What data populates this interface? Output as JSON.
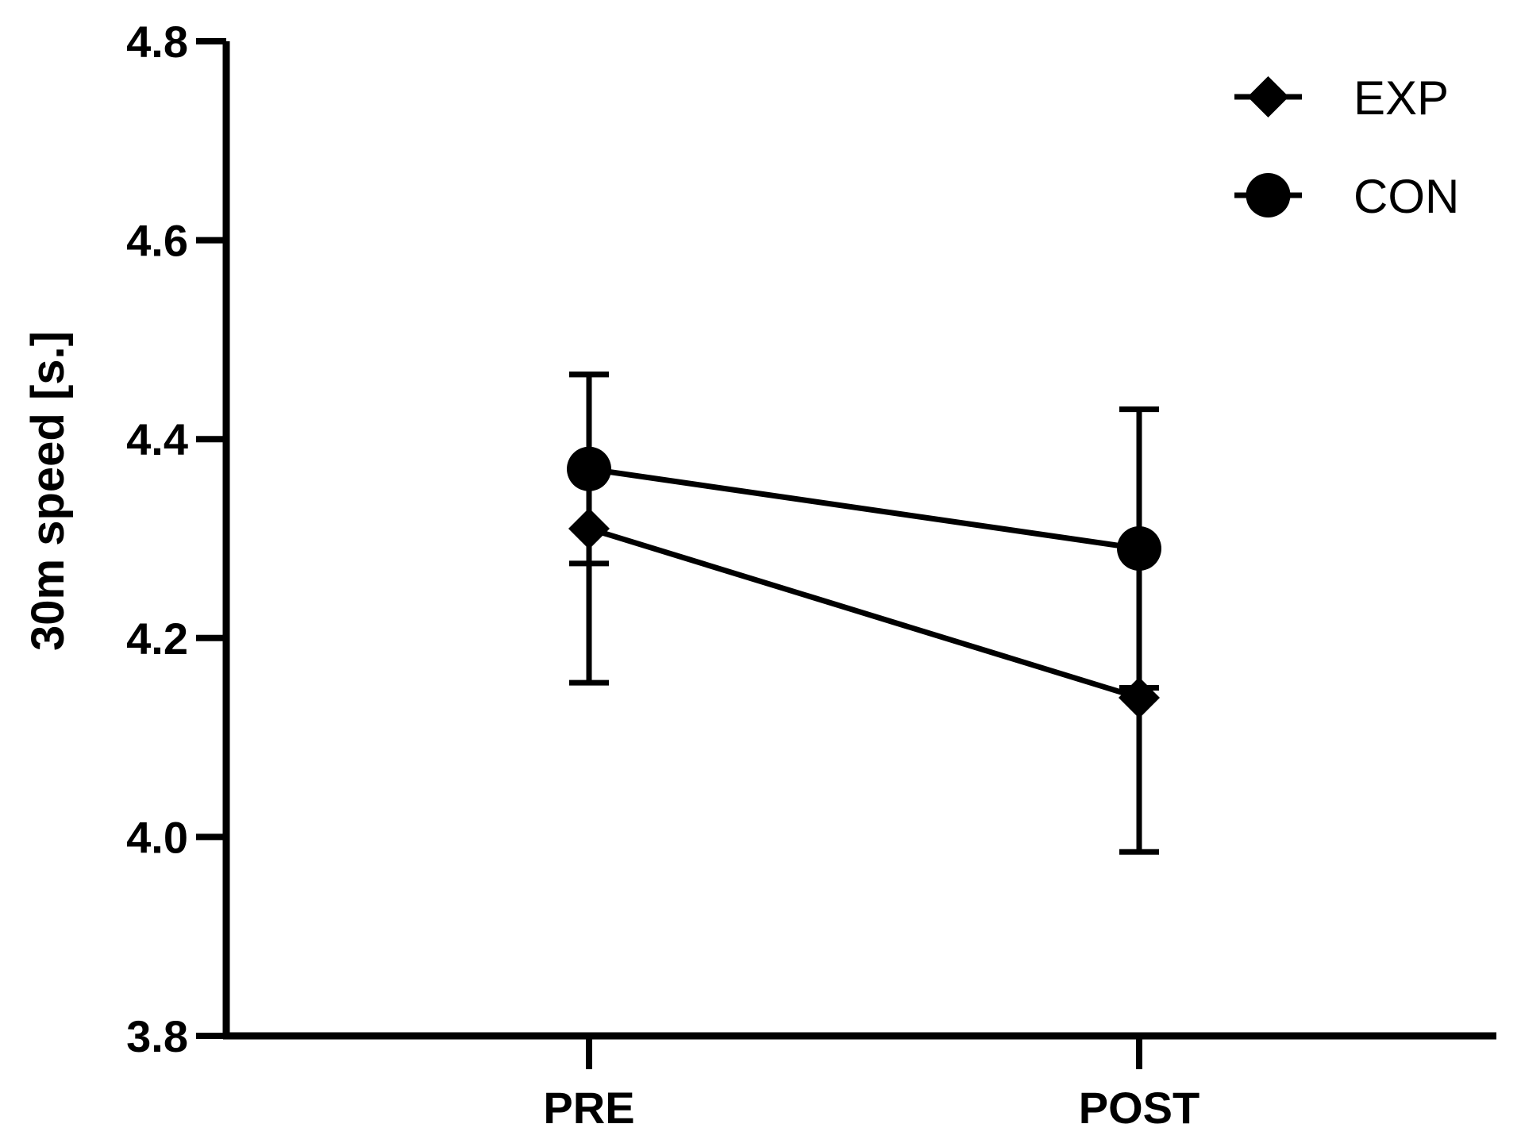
{
  "chart_data": {
    "type": "line",
    "categories": [
      "PRE",
      "POST"
    ],
    "ylabel": "30m speed [s.]",
    "xlabel": "",
    "ylim": [
      3.8,
      4.8
    ],
    "yticks": [
      "3.8",
      "4.0",
      "4.2",
      "4.4",
      "4.6",
      "4.8"
    ],
    "grid": false,
    "legend_position": "top-right",
    "series": [
      {
        "name": "EXP",
        "marker": "diamond",
        "values": [
          4.31,
          4.14
        ],
        "error": [
          0.155,
          0.155
        ]
      },
      {
        "name": "CON",
        "marker": "circle",
        "values": [
          4.37,
          4.29
        ],
        "error": [
          0.095,
          0.14
        ]
      }
    ],
    "color": "#000000"
  }
}
